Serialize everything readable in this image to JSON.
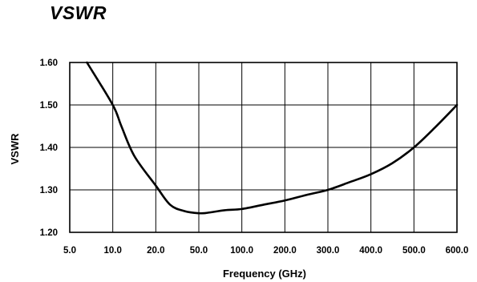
{
  "chart_data": {
    "type": "line",
    "title": "VSWR",
    "xlabel": "Frequency (GHz)",
    "ylabel": "VSWR",
    "x_tick_labels": [
      "5.0",
      "10.0",
      "20.0",
      "50.0",
      "100.0",
      "200.0",
      "300.0",
      "400.0",
      "500.0",
      "600.0"
    ],
    "y_tick_labels": [
      "1.60",
      "1.50",
      "1.40",
      "1.30",
      "1.20"
    ],
    "y_ticks": [
      1.6,
      1.5,
      1.4,
      1.3,
      1.2
    ],
    "ylim": [
      1.2,
      1.6
    ],
    "grid": true,
    "series": [
      {
        "x": [
          "7.0",
          "10.0",
          "12.0",
          "15.0",
          "20.0",
          "30.0",
          "40.0",
          "50.0",
          "60.0",
          "80.0",
          "100.0",
          "150.0",
          "200.0",
          "250.0",
          "300.0",
          "350.0",
          "400.0",
          "450.0",
          "500.0",
          "550.0",
          "600.0"
        ],
        "values": [
          1.6,
          1.5,
          1.45,
          1.38,
          1.31,
          1.265,
          1.25,
          1.245,
          1.246,
          1.252,
          1.255,
          1.265,
          1.275,
          1.288,
          1.3,
          1.318,
          1.337,
          1.363,
          1.4,
          1.448,
          1.5
        ]
      }
    ]
  }
}
